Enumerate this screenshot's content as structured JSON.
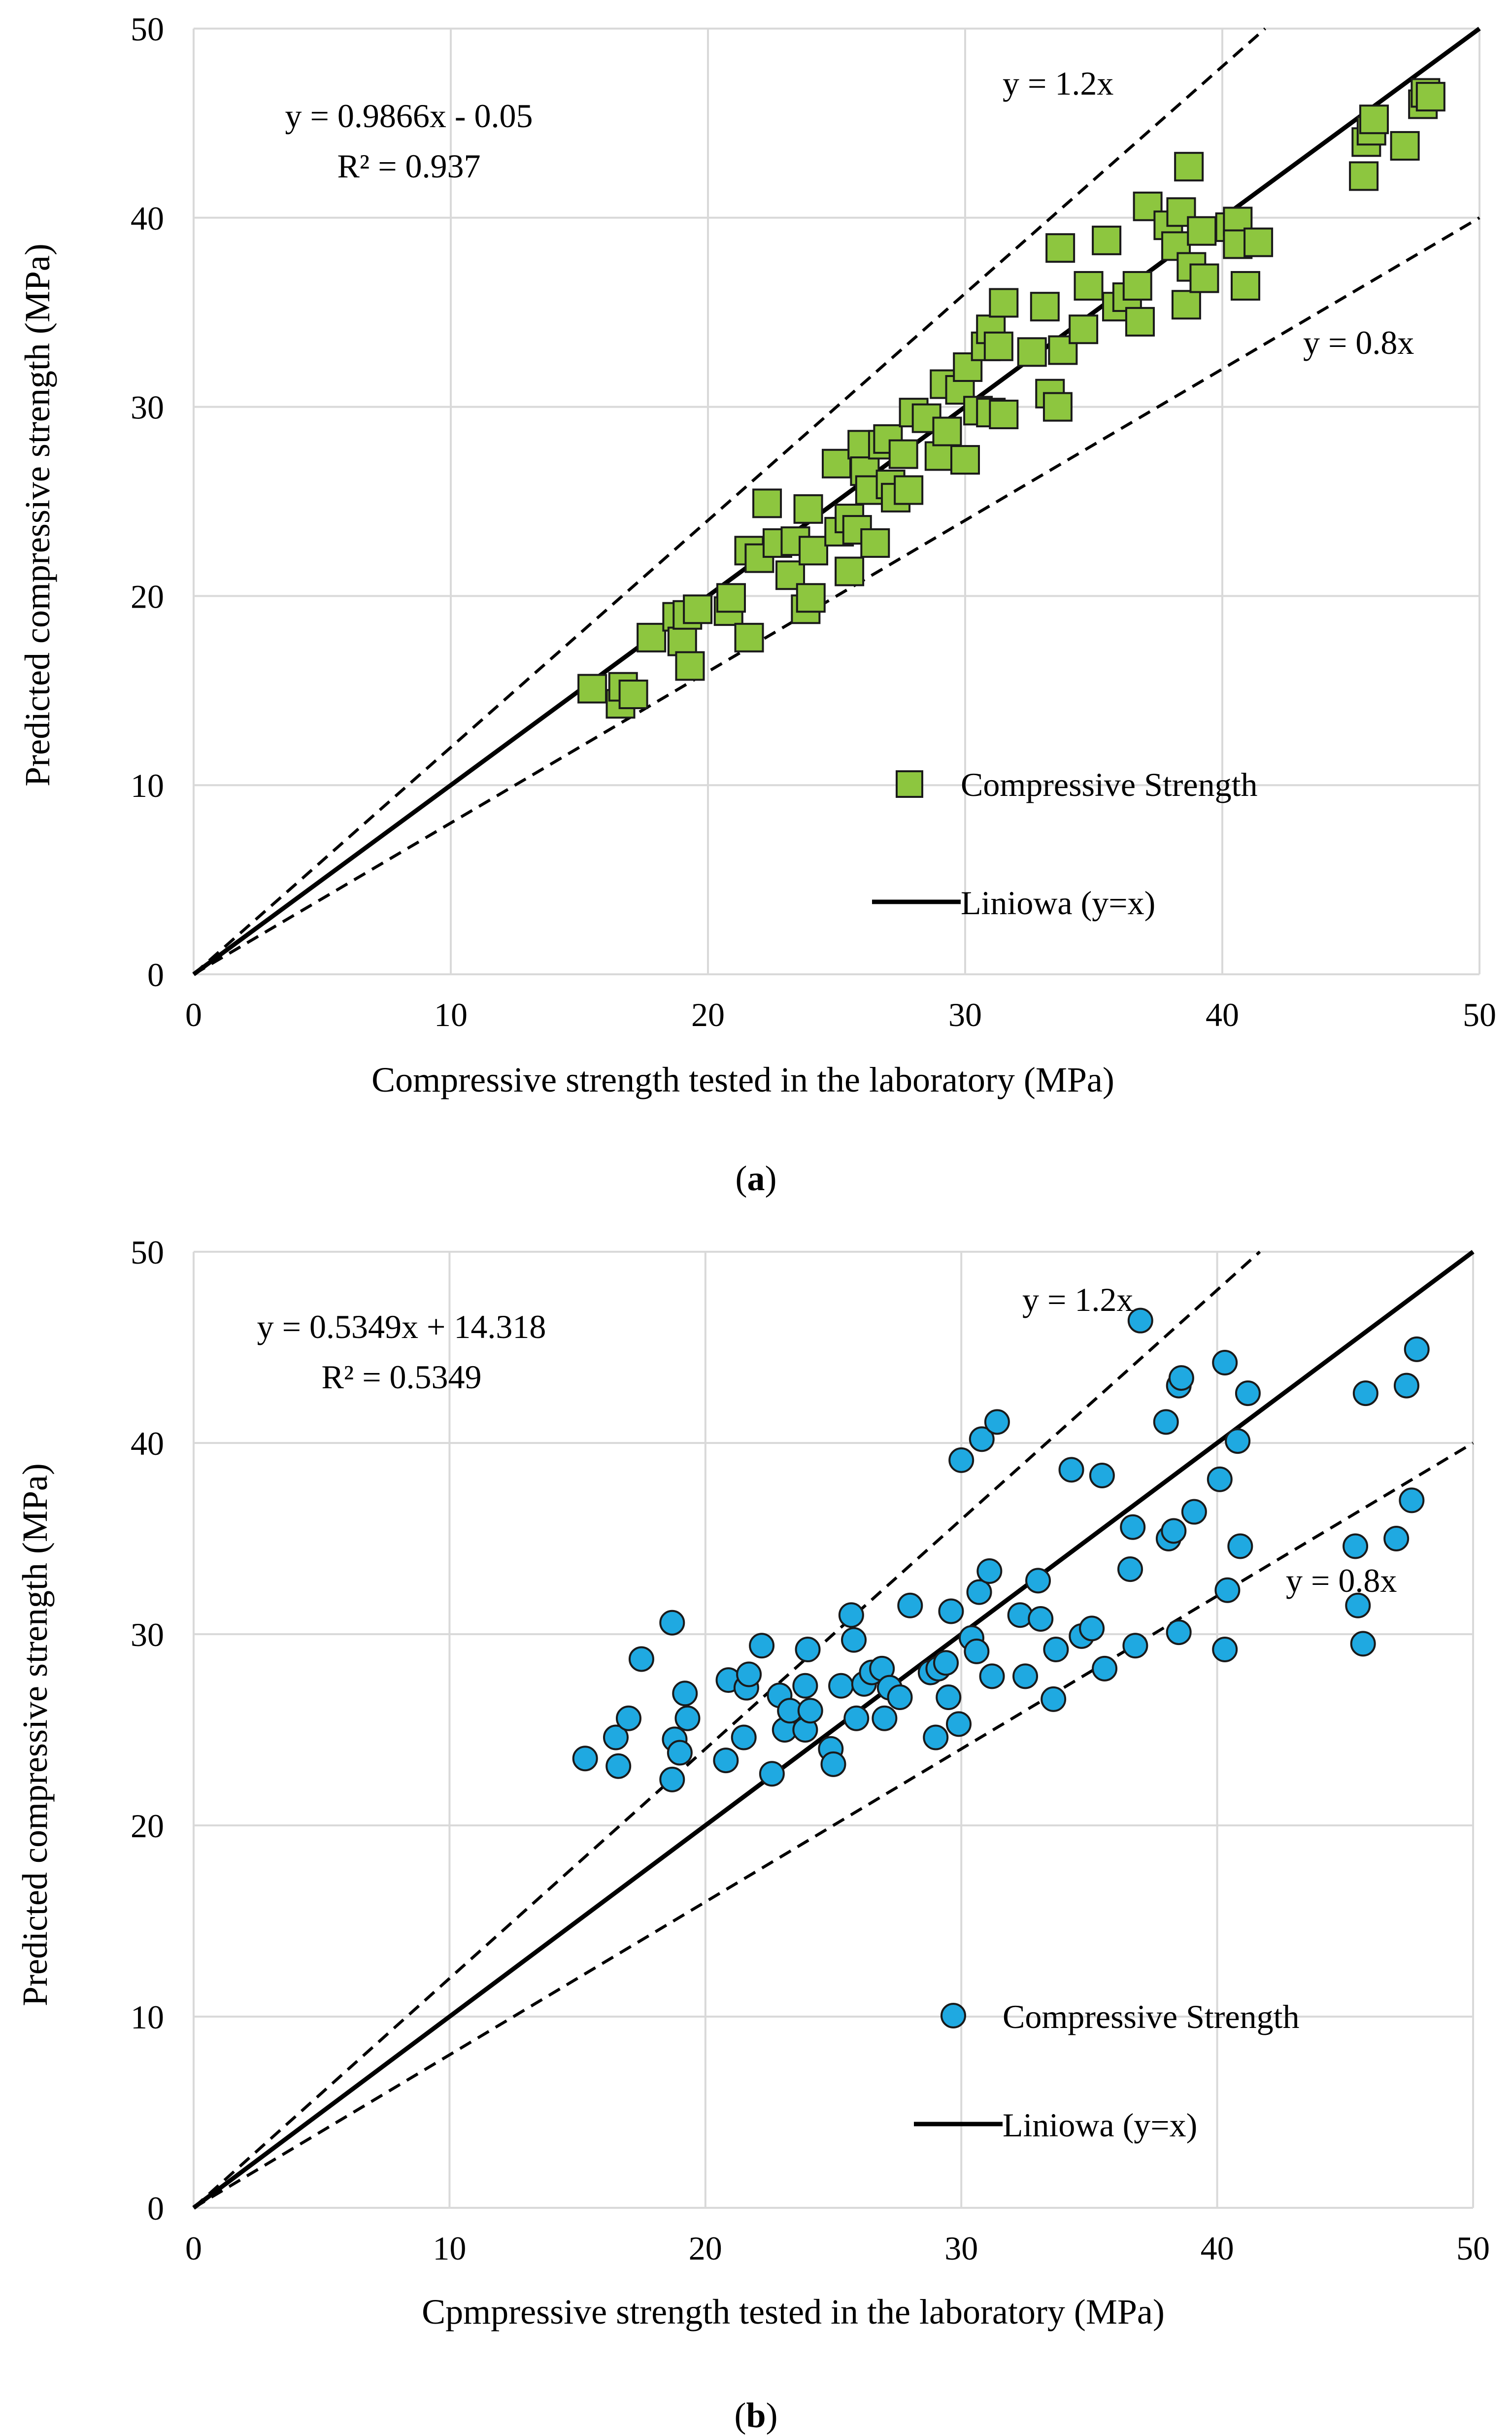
{
  "chart_data": [
    {
      "id": "a",
      "type": "scatter",
      "title": "",
      "xlabel": "Compressive strength tested in the laboratory (MPa)",
      "ylabel": "Predicted compressive strength (MPa)",
      "xlim": [
        0,
        50
      ],
      "ylim": [
        0,
        50
      ],
      "xticks": [
        0,
        10,
        20,
        30,
        40,
        50
      ],
      "yticks": [
        0,
        10,
        20,
        30,
        40,
        50
      ],
      "grid": true,
      "caption": "a",
      "equation": "y = 0.9866x - 0.05",
      "r2": "R² = 0.937",
      "marker": "square",
      "marker_color": "#8DC63F",
      "legend_placement": "bottom-right",
      "legend": {
        "series": "Compressive Strength",
        "line": "Liniowa (y=x)"
      },
      "reference_lines": [
        {
          "label": "y = 1.2x",
          "slope": 1.2,
          "style": "dashed"
        },
        {
          "label": "y = 0.8x",
          "slope": 0.8,
          "style": "dashed"
        },
        {
          "label": "",
          "slope": 1.0,
          "style": "solid"
        }
      ],
      "series": [
        {
          "name": "Compressive Strength",
          "points": [
            [
              15.5,
              15.1
            ],
            [
              16.6,
              14.3
            ],
            [
              16.7,
              15.2
            ],
            [
              17.1,
              14.8
            ],
            [
              17.8,
              17.8
            ],
            [
              18.8,
              18.9
            ],
            [
              19.0,
              17.6
            ],
            [
              19.2,
              19.0
            ],
            [
              19.3,
              16.3
            ],
            [
              19.6,
              19.3
            ],
            [
              20.8,
              19.2
            ],
            [
              20.9,
              19.9
            ],
            [
              21.6,
              17.8
            ],
            [
              21.6,
              22.4
            ],
            [
              22.0,
              22.0
            ],
            [
              22.3,
              24.9
            ],
            [
              22.7,
              22.8
            ],
            [
              23.2,
              21.1
            ],
            [
              23.4,
              22.9
            ],
            [
              23.8,
              19.3
            ],
            [
              23.9,
              24.6
            ],
            [
              24.0,
              19.9
            ],
            [
              24.1,
              22.4
            ],
            [
              25.0,
              27.0
            ],
            [
              25.1,
              23.4
            ],
            [
              25.5,
              21.3
            ],
            [
              25.5,
              24.1
            ],
            [
              25.8,
              23.5
            ],
            [
              26.0,
              28.0
            ],
            [
              26.1,
              26.6
            ],
            [
              26.3,
              25.6
            ],
            [
              26.5,
              22.8
            ],
            [
              26.8,
              28.0
            ],
            [
              27.0,
              28.3
            ],
            [
              27.1,
              25.9
            ],
            [
              27.3,
              25.2
            ],
            [
              27.6,
              27.5
            ],
            [
              27.8,
              25.6
            ],
            [
              28.0,
              29.7
            ],
            [
              28.5,
              29.4
            ],
            [
              29.0,
              27.4
            ],
            [
              29.2,
              31.2
            ],
            [
              29.3,
              28.7
            ],
            [
              29.8,
              30.9
            ],
            [
              30.0,
              27.2
            ],
            [
              30.1,
              32.1
            ],
            [
              30.5,
              29.8
            ],
            [
              30.8,
              33.2
            ],
            [
              31.0,
              29.7
            ],
            [
              31.0,
              34.1
            ],
            [
              31.3,
              33.2
            ],
            [
              31.5,
              29.6
            ],
            [
              31.5,
              35.5
            ],
            [
              32.6,
              32.9
            ],
            [
              33.1,
              35.3
            ],
            [
              33.3,
              30.7
            ],
            [
              33.6,
              30.0
            ],
            [
              33.7,
              38.4
            ],
            [
              33.8,
              33.0
            ],
            [
              34.6,
              34.1
            ],
            [
              34.8,
              36.4
            ],
            [
              35.5,
              38.8
            ],
            [
              35.9,
              35.3
            ],
            [
              36.3,
              35.8
            ],
            [
              36.7,
              36.4
            ],
            [
              36.8,
              34.5
            ],
            [
              37.1,
              40.6
            ],
            [
              37.9,
              39.6
            ],
            [
              38.2,
              38.5
            ],
            [
              38.4,
              40.3
            ],
            [
              38.6,
              35.4
            ],
            [
              38.7,
              42.7
            ],
            [
              38.8,
              37.4
            ],
            [
              39.2,
              39.3
            ],
            [
              39.3,
              36.8
            ],
            [
              40.3,
              39.5
            ],
            [
              40.6,
              39.8
            ],
            [
              40.6,
              38.6
            ],
            [
              40.9,
              36.4
            ],
            [
              41.4,
              38.7
            ],
            [
              45.5,
              42.2
            ],
            [
              45.6,
              44.0
            ],
            [
              45.8,
              44.6
            ],
            [
              45.9,
              45.2
            ],
            [
              47.1,
              43.8
            ],
            [
              47.8,
              46.0
            ],
            [
              47.9,
              46.6
            ],
            [
              48.1,
              46.4
            ]
          ]
        }
      ]
    },
    {
      "id": "b",
      "type": "scatter",
      "title": "",
      "xlabel": "Cpmpressive strength tested in the laboratory (MPa)",
      "ylabel": "Predicted compressive strength (MPa)",
      "xlim": [
        0,
        50
      ],
      "ylim": [
        0,
        50
      ],
      "xticks": [
        0,
        10,
        20,
        30,
        40,
        50
      ],
      "yticks": [
        0,
        10,
        20,
        30,
        40,
        50
      ],
      "grid": true,
      "caption": "b",
      "equation": "y = 0.5349x + 14.318",
      "r2": "R² = 0.5349",
      "marker": "circle",
      "marker_color": "#1FA9E1",
      "legend_placement": "bottom-right",
      "legend": {
        "series": "Compressive Strength",
        "line": "Liniowa (y=x)"
      },
      "reference_lines": [
        {
          "label": "y = 1.2x",
          "slope": 1.2,
          "style": "dashed"
        },
        {
          "label": "y = 0.8x",
          "slope": 0.8,
          "style": "dashed"
        },
        {
          "label": "",
          "slope": 1.0,
          "style": "solid"
        }
      ],
      "series": [
        {
          "name": "Compressive Strength",
          "points": [
            [
              15.3,
              23.5
            ],
            [
              16.5,
              24.6
            ],
            [
              16.6,
              23.1
            ],
            [
              17.0,
              25.6
            ],
            [
              17.5,
              28.7
            ],
            [
              18.7,
              30.6
            ],
            [
              18.7,
              22.4
            ],
            [
              18.8,
              24.5
            ],
            [
              19.0,
              23.8
            ],
            [
              19.2,
              26.9
            ],
            [
              19.3,
              25.6
            ],
            [
              20.8,
              23.4
            ],
            [
              20.9,
              27.6
            ],
            [
              21.5,
              24.6
            ],
            [
              21.6,
              27.2
            ],
            [
              21.7,
              27.9
            ],
            [
              22.2,
              29.4
            ],
            [
              22.6,
              22.7
            ],
            [
              22.9,
              26.8
            ],
            [
              23.1,
              25.0
            ],
            [
              23.3,
              26.0
            ],
            [
              23.9,
              25.0
            ],
            [
              23.9,
              27.3
            ],
            [
              24.0,
              29.2
            ],
            [
              24.1,
              26.0
            ],
            [
              24.9,
              24.0
            ],
            [
              25.0,
              23.2
            ],
            [
              25.3,
              27.3
            ],
            [
              25.7,
              31.0
            ],
            [
              25.8,
              29.7
            ],
            [
              25.9,
              25.6
            ],
            [
              26.2,
              27.4
            ],
            [
              26.5,
              28.0
            ],
            [
              26.9,
              28.2
            ],
            [
              27.0,
              25.6
            ],
            [
              27.2,
              27.2
            ],
            [
              27.6,
              26.7
            ],
            [
              28.0,
              31.5
            ],
            [
              28.8,
              28.0
            ],
            [
              29.0,
              24.6
            ],
            [
              29.1,
              28.2
            ],
            [
              29.4,
              28.5
            ],
            [
              29.5,
              26.7
            ],
            [
              29.6,
              31.2
            ],
            [
              29.9,
              25.3
            ],
            [
              30.0,
              39.1
            ],
            [
              30.4,
              29.8
            ],
            [
              30.6,
              29.1
            ],
            [
              30.7,
              32.2
            ],
            [
              30.8,
              40.2
            ],
            [
              31.1,
              33.3
            ],
            [
              31.2,
              27.8
            ],
            [
              31.4,
              41.1
            ],
            [
              32.3,
              31.0
            ],
            [
              32.5,
              27.8
            ],
            [
              33.0,
              32.8
            ],
            [
              33.1,
              30.8
            ],
            [
              33.6,
              26.6
            ],
            [
              33.7,
              29.2
            ],
            [
              34.3,
              38.6
            ],
            [
              34.7,
              29.9
            ],
            [
              35.1,
              30.3
            ],
            [
              35.5,
              38.3
            ],
            [
              35.6,
              28.2
            ],
            [
              36.6,
              33.4
            ],
            [
              36.7,
              35.6
            ],
            [
              36.8,
              29.4
            ],
            [
              37.0,
              46.4
            ],
            [
              38.0,
              41.1
            ],
            [
              38.1,
              35.0
            ],
            [
              38.3,
              35.4
            ],
            [
              38.5,
              30.1
            ],
            [
              38.5,
              43.0
            ],
            [
              38.6,
              43.4
            ],
            [
              39.1,
              36.4
            ],
            [
              40.1,
              38.1
            ],
            [
              40.3,
              29.2
            ],
            [
              40.3,
              44.2
            ],
            [
              40.4,
              32.3
            ],
            [
              40.8,
              40.1
            ],
            [
              40.9,
              34.6
            ],
            [
              41.2,
              42.6
            ],
            [
              45.4,
              34.6
            ],
            [
              45.5,
              31.5
            ],
            [
              45.7,
              29.5
            ],
            [
              45.8,
              42.6
            ],
            [
              47.0,
              35.0
            ],
            [
              47.4,
              43.0
            ],
            [
              47.6,
              37.0
            ],
            [
              47.8,
              44.9
            ]
          ]
        }
      ]
    }
  ]
}
